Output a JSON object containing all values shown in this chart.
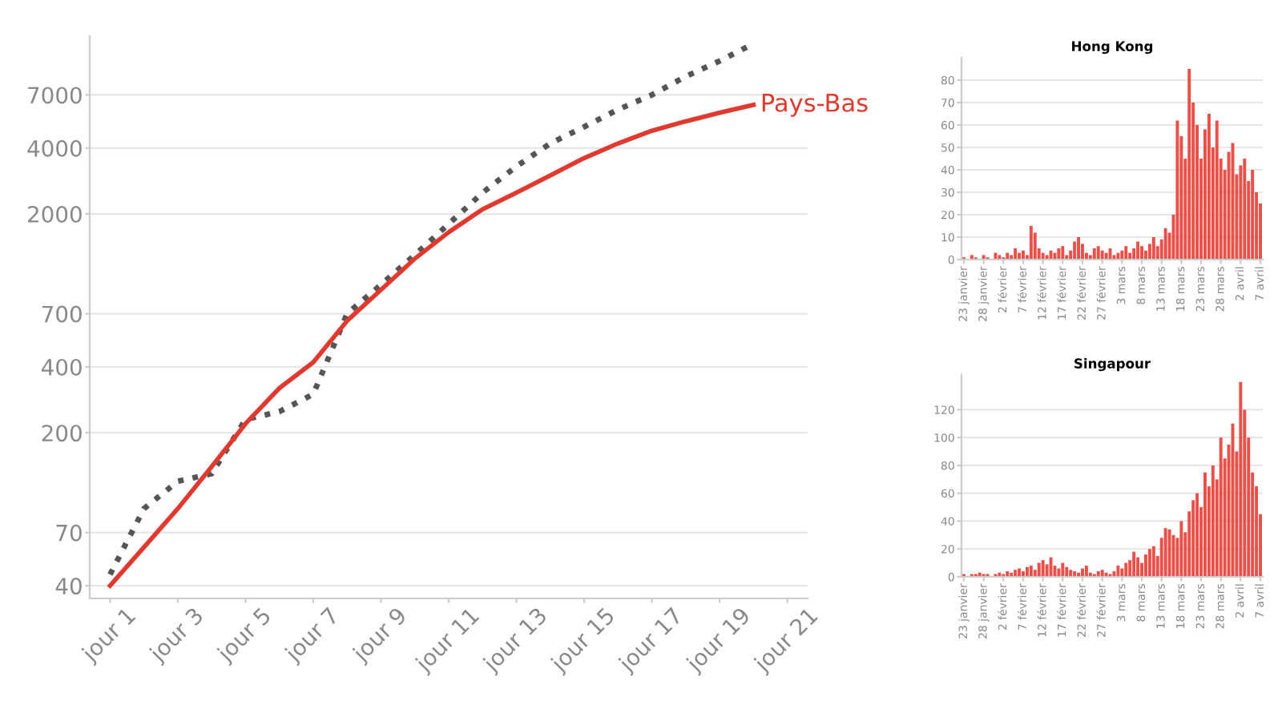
{
  "chart_data": [
    {
      "type": "line",
      "log": "y",
      "grid": "y",
      "legend": false,
      "ylim": [
        35,
        13000
      ],
      "yticks": [
        40,
        70,
        200,
        400,
        700,
        2000,
        4000,
        7000
      ],
      "categories": [
        "jour 1",
        null,
        "jour 3",
        null,
        "jour 5",
        null,
        "jour 7",
        null,
        "jour 9",
        null,
        "jour 11",
        null,
        "jour 13",
        null,
        "jour 15",
        null,
        "jour 17",
        null,
        "jour 19",
        null,
        "jour 21"
      ],
      "series": [
        {
          "color": "#555555",
          "line_style": "dotted",
          "values": [
            45,
            90,
            120,
            130,
            230,
            250,
            300,
            700,
            950,
            1300,
            1800,
            2500,
            3300,
            4200,
            5000,
            6000,
            7000,
            8500,
            10000,
            12000,
            null
          ]
        },
        {
          "name": "Pays-Bas",
          "color": "#e03a30",
          "line_style": "solid",
          "values": [
            40,
            60,
            90,
            140,
            220,
            320,
            420,
            650,
            900,
            1250,
            1650,
            2100,
            2500,
            3000,
            3600,
            4200,
            4800,
            5300,
            5800,
            6300,
            null
          ]
        }
      ]
    },
    {
      "type": "bar",
      "title": "Hong Kong",
      "grid": "y",
      "ylim": [
        0,
        90
      ],
      "yticks": [
        0,
        10,
        20,
        30,
        40,
        50,
        60,
        70,
        80
      ],
      "categories": [
        "23 janvier",
        null,
        null,
        null,
        null,
        "28 janvier",
        null,
        null,
        null,
        null,
        "2 février",
        null,
        null,
        null,
        null,
        "7 février",
        null,
        null,
        null,
        null,
        "12 février",
        null,
        null,
        null,
        null,
        "17 février",
        null,
        null,
        null,
        null,
        "22 février",
        null,
        null,
        null,
        null,
        "27 février",
        null,
        null,
        null,
        null,
        "3 mars",
        null,
        null,
        null,
        null,
        "8 mars",
        null,
        null,
        null,
        null,
        "13 mars",
        null,
        null,
        null,
        null,
        "18 mars",
        null,
        null,
        null,
        null,
        "23 mars",
        null,
        null,
        null,
        null,
        "28 mars",
        null,
        null,
        null,
        null,
        "2 avril",
        null,
        null,
        null,
        null,
        "7 avril"
      ],
      "color": "#e8504a",
      "values": [
        1,
        0,
        2,
        1,
        0,
        2,
        1,
        0,
        3,
        2,
        1,
        3,
        2,
        5,
        3,
        4,
        2,
        15,
        12,
        5,
        3,
        2,
        4,
        3,
        5,
        6,
        2,
        4,
        8,
        10,
        7,
        3,
        2,
        5,
        6,
        4,
        3,
        5,
        2,
        3,
        4,
        6,
        3,
        5,
        8,
        6,
        4,
        7,
        10,
        6,
        9,
        14,
        12,
        20,
        62,
        55,
        45,
        85,
        70,
        60,
        45,
        58,
        65,
        50,
        62,
        45,
        40,
        48,
        52,
        38,
        42,
        45,
        35,
        40,
        30,
        25
      ]
    },
    {
      "type": "bar",
      "title": "Singapour",
      "grid": "y",
      "ylim": [
        0,
        145
      ],
      "yticks": [
        0,
        20,
        40,
        60,
        80,
        100,
        120
      ],
      "categories": [
        "23 janvier",
        null,
        null,
        null,
        null,
        "28 janvier",
        null,
        null,
        null,
        null,
        "2 février",
        null,
        null,
        null,
        null,
        "7 février",
        null,
        null,
        null,
        null,
        "12 février",
        null,
        null,
        null,
        null,
        "17 février",
        null,
        null,
        null,
        null,
        "22 février",
        null,
        null,
        null,
        null,
        "27 février",
        null,
        null,
        null,
        null,
        "3 mars",
        null,
        null,
        null,
        null,
        "8 mars",
        null,
        null,
        null,
        null,
        "13 mars",
        null,
        null,
        null,
        null,
        "18 mars",
        null,
        null,
        null,
        null,
        "23 mars",
        null,
        null,
        null,
        null,
        "28 mars",
        null,
        null,
        null,
        null,
        "2 avril",
        null,
        null,
        null,
        null,
        "7 avril"
      ],
      "color": "#e8504a",
      "values": [
        2,
        0,
        2,
        2,
        3,
        2,
        2,
        0,
        2,
        3,
        2,
        4,
        3,
        5,
        6,
        4,
        7,
        8,
        5,
        10,
        12,
        9,
        14,
        8,
        6,
        10,
        7,
        5,
        4,
        3,
        6,
        8,
        3,
        2,
        4,
        5,
        3,
        2,
        4,
        8,
        6,
        10,
        12,
        18,
        14,
        10,
        16,
        20,
        22,
        15,
        28,
        35,
        34,
        30,
        28,
        40,
        32,
        47,
        55,
        60,
        50,
        75,
        65,
        80,
        70,
        100,
        85,
        95,
        110,
        90,
        140,
        120,
        100,
        75,
        65,
        45
      ]
    }
  ]
}
